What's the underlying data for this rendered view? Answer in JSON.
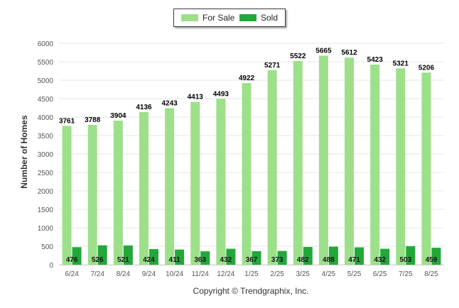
{
  "legend": {
    "for_sale_label": "For Sale",
    "sold_label": "Sold"
  },
  "copyright": "Copyright © Trendgraphix, Inc.",
  "colors": {
    "for_sale": "#9de08a",
    "sold": "#22a83a",
    "grid": "#e6e6e6",
    "axis_text": "#555555"
  },
  "chart_data": {
    "type": "bar",
    "title": "",
    "xlabel": "",
    "ylabel": "Number of Homes",
    "ylim": [
      0,
      6000
    ],
    "yticks": [
      0,
      500,
      1000,
      1500,
      2000,
      2500,
      3000,
      3500,
      4000,
      4500,
      5000,
      5500,
      6000
    ],
    "categories": [
      "6/24",
      "7/24",
      "8/24",
      "9/24",
      "10/24",
      "11/24",
      "12/24",
      "1/25",
      "2/25",
      "3/25",
      "4/25",
      "5/25",
      "6/25",
      "7/25",
      "8/25"
    ],
    "series": [
      {
        "name": "For Sale",
        "values": [
          3761,
          3788,
          3904,
          4136,
          4243,
          4413,
          4493,
          4922,
          5271,
          5522,
          5665,
          5612,
          5423,
          5321,
          5206
        ]
      },
      {
        "name": "Sold",
        "values": [
          476,
          526,
          521,
          424,
          411,
          363,
          432,
          367,
          373,
          482,
          488,
          471,
          432,
          503,
          459
        ]
      }
    ],
    "grid": true,
    "legend_position": "top-center",
    "data_labels": true
  }
}
